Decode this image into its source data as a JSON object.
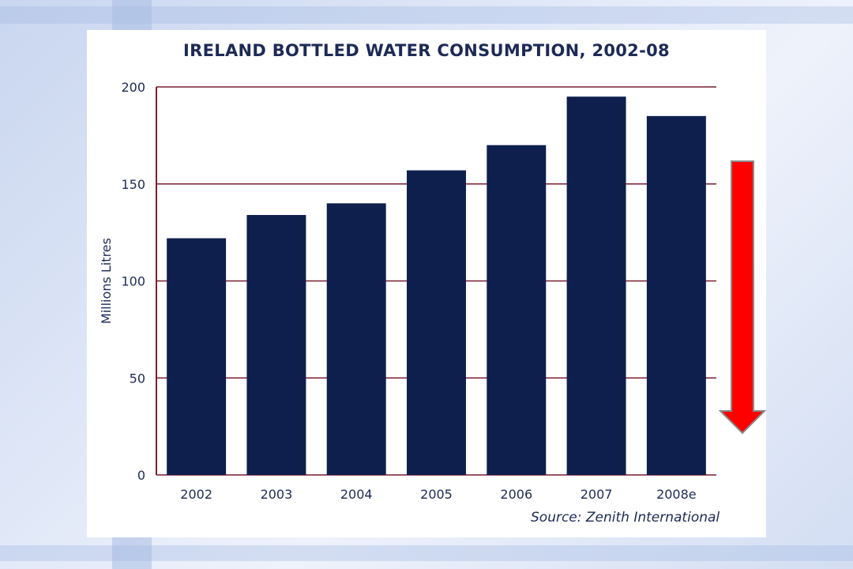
{
  "chart_data": {
    "type": "bar",
    "title": "IRELAND BOTTLED WATER CONSUMPTION, 2002-08",
    "xlabel": "",
    "ylabel": "Millions Litres",
    "categories": [
      "2002",
      "2003",
      "2004",
      "2005",
      "2006",
      "2007",
      "2008e"
    ],
    "values": [
      122,
      134,
      140,
      157,
      170,
      195,
      185
    ],
    "ylim": [
      0,
      200
    ],
    "yticks": [
      "0",
      "50",
      "100",
      "150",
      "200"
    ],
    "grid": true,
    "legend": "none",
    "source": "Source: Zenith International"
  },
  "colors": {
    "bar": "#0e1f4d",
    "gridline": "#7a1e2e",
    "axis": "#7a1e2e",
    "text": "#1d2a56",
    "arrow": "#ff0000"
  },
  "annotation": {
    "arrow_icon": "red-down-arrow-icon"
  }
}
